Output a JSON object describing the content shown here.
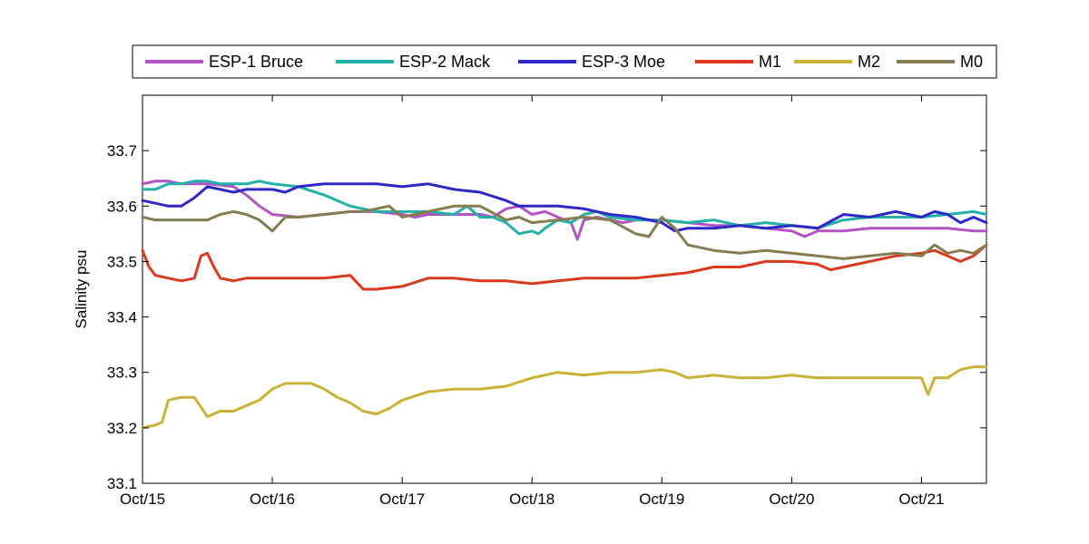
{
  "chart_data": {
    "type": "line",
    "title": "",
    "xlabel": "",
    "ylabel": "Salinity psu",
    "xlim": [
      0,
      6.5
    ],
    "ylim": [
      33.1,
      33.8
    ],
    "x_ticks": [
      {
        "value": 0,
        "label": "Oct/15"
      },
      {
        "value": 1,
        "label": "Oct/16"
      },
      {
        "value": 2,
        "label": "Oct/17"
      },
      {
        "value": 3,
        "label": "Oct/18"
      },
      {
        "value": 4,
        "label": "Oct/19"
      },
      {
        "value": 5,
        "label": "Oct/20"
      },
      {
        "value": 6,
        "label": "Oct/21"
      }
    ],
    "y_ticks": [
      {
        "value": 33.1,
        "label": "33.1"
      },
      {
        "value": 33.2,
        "label": "33.2"
      },
      {
        "value": 33.3,
        "label": "33.3"
      },
      {
        "value": 33.4,
        "label": "33.4"
      },
      {
        "value": 33.5,
        "label": "33.5"
      },
      {
        "value": 33.6,
        "label": "33.6"
      },
      {
        "value": 33.7,
        "label": "33.7"
      }
    ],
    "grid": false,
    "legend_position": "top",
    "series": [
      {
        "name": "ESP-1 Bruce",
        "color": "#b254c4",
        "x": [
          0,
          0.1,
          0.2,
          0.3,
          0.4,
          0.5,
          0.6,
          0.7,
          0.8,
          0.9,
          1.0,
          1.2,
          1.4,
          1.6,
          1.8,
          2.0,
          2.1,
          2.2,
          2.4,
          2.6,
          2.7,
          2.8,
          2.9,
          3.0,
          3.1,
          3.2,
          3.3,
          3.35,
          3.4,
          3.5,
          3.6,
          3.7,
          3.8,
          4.0,
          4.2,
          4.4,
          4.6,
          4.8,
          5.0,
          5.1,
          5.2,
          5.4,
          5.6,
          5.8,
          6.0,
          6.2,
          6.4,
          6.5
        ],
        "y": [
          33.64,
          33.645,
          33.645,
          33.64,
          33.64,
          33.64,
          33.638,
          33.635,
          33.62,
          33.6,
          33.585,
          33.58,
          33.585,
          33.59,
          33.59,
          33.585,
          33.58,
          33.585,
          33.585,
          33.585,
          33.58,
          33.595,
          33.6,
          33.585,
          33.59,
          33.58,
          33.57,
          33.54,
          33.575,
          33.58,
          33.575,
          33.57,
          33.575,
          33.575,
          33.57,
          33.565,
          33.565,
          33.56,
          33.555,
          33.545,
          33.555,
          33.555,
          33.56,
          33.56,
          33.56,
          33.56,
          33.555,
          33.555
        ]
      },
      {
        "name": "ESP-2 Mack",
        "color": "#22b0aa",
        "x": [
          0,
          0.1,
          0.2,
          0.3,
          0.4,
          0.5,
          0.6,
          0.7,
          0.8,
          0.9,
          1.0,
          1.2,
          1.4,
          1.6,
          1.8,
          2.0,
          2.2,
          2.4,
          2.5,
          2.6,
          2.7,
          2.8,
          2.9,
          3.0,
          3.05,
          3.1,
          3.2,
          3.3,
          3.4,
          3.5,
          3.6,
          3.8,
          4.0,
          4.2,
          4.4,
          4.6,
          4.8,
          5.0,
          5.2,
          5.4,
          5.6,
          5.8,
          6.0,
          6.2,
          6.4,
          6.5
        ],
        "y": [
          33.63,
          33.63,
          33.64,
          33.64,
          33.645,
          33.645,
          33.64,
          33.64,
          33.64,
          33.645,
          33.64,
          33.635,
          33.62,
          33.6,
          33.59,
          33.59,
          33.59,
          33.585,
          33.6,
          33.58,
          33.58,
          33.57,
          33.55,
          33.555,
          33.55,
          33.56,
          33.575,
          33.57,
          33.585,
          33.59,
          33.58,
          33.575,
          33.575,
          33.57,
          33.575,
          33.565,
          33.57,
          33.565,
          33.56,
          33.575,
          33.58,
          33.58,
          33.58,
          33.585,
          33.59,
          33.585
        ]
      },
      {
        "name": "ESP-3 Moe",
        "color": "#2e28c9",
        "x": [
          0,
          0.1,
          0.2,
          0.3,
          0.4,
          0.5,
          0.6,
          0.7,
          0.8,
          0.9,
          1.0,
          1.1,
          1.2,
          1.4,
          1.6,
          1.8,
          2.0,
          2.2,
          2.4,
          2.6,
          2.8,
          2.9,
          3.0,
          3.2,
          3.4,
          3.6,
          3.8,
          4.0,
          4.1,
          4.2,
          4.4,
          4.6,
          4.8,
          5.0,
          5.2,
          5.4,
          5.6,
          5.8,
          6.0,
          6.1,
          6.2,
          6.3,
          6.4,
          6.5
        ],
        "y": [
          33.61,
          33.605,
          33.6,
          33.6,
          33.615,
          33.635,
          33.63,
          33.625,
          33.63,
          33.63,
          33.63,
          33.625,
          33.635,
          33.64,
          33.64,
          33.64,
          33.635,
          33.64,
          33.63,
          33.625,
          33.61,
          33.6,
          33.6,
          33.6,
          33.595,
          33.585,
          33.58,
          33.57,
          33.555,
          33.56,
          33.56,
          33.565,
          33.56,
          33.565,
          33.56,
          33.585,
          33.58,
          33.59,
          33.58,
          33.59,
          33.585,
          33.57,
          33.58,
          33.57
        ]
      },
      {
        "name": "M1",
        "color": "#d93a1d",
        "x": [
          0,
          0.05,
          0.1,
          0.2,
          0.3,
          0.4,
          0.45,
          0.5,
          0.55,
          0.6,
          0.7,
          0.8,
          0.9,
          1.0,
          1.2,
          1.4,
          1.6,
          1.7,
          1.8,
          2.0,
          2.2,
          2.4,
          2.6,
          2.8,
          3.0,
          3.2,
          3.4,
          3.6,
          3.8,
          4.0,
          4.2,
          4.4,
          4.6,
          4.8,
          5.0,
          5.2,
          5.3,
          5.4,
          5.6,
          5.8,
          6.0,
          6.1,
          6.2,
          6.3,
          6.4,
          6.5
        ],
        "y": [
          33.52,
          33.49,
          33.475,
          33.47,
          33.465,
          33.47,
          33.51,
          33.515,
          33.49,
          33.47,
          33.465,
          33.47,
          33.47,
          33.47,
          33.47,
          33.47,
          33.475,
          33.45,
          33.45,
          33.455,
          33.47,
          33.47,
          33.465,
          33.465,
          33.46,
          33.465,
          33.47,
          33.47,
          33.47,
          33.475,
          33.48,
          33.49,
          33.49,
          33.5,
          33.5,
          33.495,
          33.485,
          33.49,
          33.5,
          33.51,
          33.515,
          33.52,
          33.51,
          33.5,
          33.51,
          33.53
        ]
      },
      {
        "name": "M2",
        "color": "#c9b236",
        "x": [
          0,
          0.1,
          0.15,
          0.2,
          0.3,
          0.4,
          0.5,
          0.6,
          0.7,
          0.8,
          0.9,
          1.0,
          1.1,
          1.2,
          1.3,
          1.4,
          1.5,
          1.6,
          1.7,
          1.8,
          1.9,
          2.0,
          2.2,
          2.4,
          2.6,
          2.8,
          3.0,
          3.2,
          3.4,
          3.6,
          3.8,
          4.0,
          4.1,
          4.2,
          4.4,
          4.6,
          4.8,
          5.0,
          5.2,
          5.4,
          5.6,
          5.8,
          6.0,
          6.05,
          6.1,
          6.2,
          6.3,
          6.4,
          6.5
        ],
        "y": [
          33.2,
          33.205,
          33.21,
          33.25,
          33.255,
          33.255,
          33.22,
          33.23,
          33.23,
          33.24,
          33.25,
          33.27,
          33.28,
          33.28,
          33.28,
          33.27,
          33.255,
          33.245,
          33.23,
          33.225,
          33.235,
          33.25,
          33.265,
          33.27,
          33.27,
          33.275,
          33.29,
          33.3,
          33.295,
          33.3,
          33.3,
          33.305,
          33.3,
          33.29,
          33.295,
          33.29,
          33.29,
          33.295,
          33.29,
          33.29,
          33.29,
          33.29,
          33.29,
          33.26,
          33.29,
          33.29,
          33.305,
          33.31,
          33.31
        ]
      },
      {
        "name": "M0",
        "color": "#857c4f",
        "x": [
          0,
          0.1,
          0.2,
          0.3,
          0.4,
          0.5,
          0.6,
          0.7,
          0.8,
          0.9,
          1.0,
          1.1,
          1.2,
          1.4,
          1.6,
          1.7,
          1.8,
          1.9,
          2.0,
          2.2,
          2.4,
          2.6,
          2.8,
          2.9,
          3.0,
          3.2,
          3.4,
          3.6,
          3.8,
          3.9,
          4.0,
          4.1,
          4.2,
          4.4,
          4.6,
          4.8,
          5.0,
          5.2,
          5.4,
          5.6,
          5.8,
          6.0,
          6.1,
          6.2,
          6.3,
          6.4,
          6.5
        ],
        "y": [
          33.58,
          33.575,
          33.575,
          33.575,
          33.575,
          33.575,
          33.585,
          33.59,
          33.585,
          33.575,
          33.555,
          33.58,
          33.58,
          33.585,
          33.59,
          33.59,
          33.595,
          33.6,
          33.58,
          33.59,
          33.6,
          33.6,
          33.575,
          33.58,
          33.57,
          33.575,
          33.58,
          33.575,
          33.55,
          33.545,
          33.58,
          33.56,
          33.53,
          33.52,
          33.515,
          33.52,
          33.515,
          33.51,
          33.505,
          33.51,
          33.515,
          33.51,
          33.53,
          33.515,
          33.52,
          33.515,
          33.53
        ]
      }
    ]
  }
}
